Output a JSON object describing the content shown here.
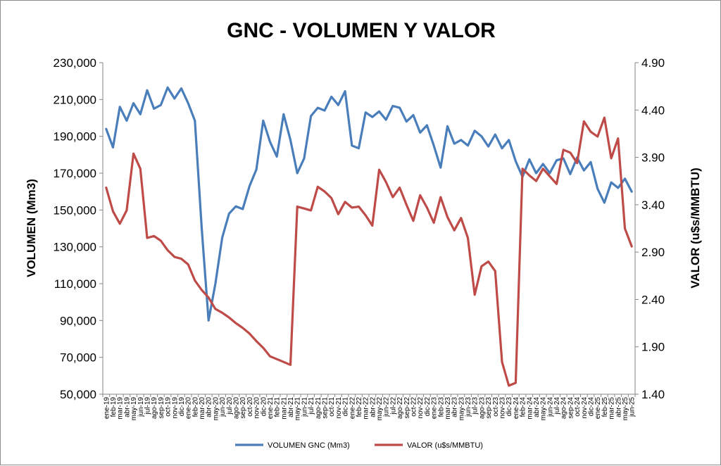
{
  "chart_data": {
    "type": "line",
    "title": "GNC - VOLUMEN Y VALOR",
    "ylabel_left": "VOLUMEN (Mm3)",
    "ylabel_right": "VALOR (u$s/MMBTU)",
    "ylim_left": [
      50000,
      230000
    ],
    "ylim_right": [
      1.4,
      4.9
    ],
    "yticks_left": [
      "50,000",
      "70,000",
      "90,000",
      "110,000",
      "130,000",
      "150,000",
      "170,000",
      "190,000",
      "210,000",
      "230,000"
    ],
    "yticks_right": [
      "1.40",
      "1.90",
      "2.40",
      "2.90",
      "3.40",
      "3.90",
      "4.40",
      "4.90"
    ],
    "grid": false,
    "legend_position": "bottom",
    "categories": [
      "ene-19",
      "feb-19",
      "mar-19",
      "abr-19",
      "may-19",
      "jun-19",
      "jul-19",
      "ago-19",
      "sep-19",
      "oct-19",
      "nov-19",
      "dic-19",
      "ene-20",
      "feb-20",
      "mar-20",
      "abr-20",
      "may-20",
      "jun-20",
      "jul-20",
      "ago-20",
      "sep-20",
      "oct-20",
      "nov-20",
      "dic-20",
      "ene-21",
      "feb-21",
      "mar-21",
      "abr-21",
      "may-21",
      "jun-21",
      "jul-21",
      "ago-21",
      "sep-21",
      "oct-21",
      "nov-21",
      "dic-21",
      "ene-22",
      "feb-22",
      "mar-22",
      "abr-22",
      "may-22",
      "jun-22",
      "jul-22",
      "ago-22",
      "sep-22",
      "oct-22",
      "nov-22",
      "dic-22",
      "ene-23",
      "feb-23",
      "mar-23",
      "abr-23",
      "may-23",
      "jun-23",
      "jul-23",
      "ago-23",
      "sep-23",
      "oct-23",
      "nov-23",
      "dic-23",
      "ene-24",
      "feb-24",
      "mar-24",
      "abr-24",
      "may-24",
      "jun-24",
      "jul-24",
      "ago-24",
      "sep-24",
      "oct-24",
      "nov-24",
      "dic-24",
      "ene-25",
      "feb-25",
      "mar-25",
      "abr-25",
      "may-25",
      "jun-25"
    ],
    "series": [
      {
        "name": "VOLUMEN GNC (Mm3)",
        "axis": "left",
        "color": "#4a7ebb",
        "values": [
          194000,
          184000,
          206000,
          198500,
          208000,
          202000,
          215000,
          205000,
          207000,
          216500,
          210500,
          216000,
          208000,
          198500,
          140000,
          90000,
          110000,
          135000,
          148000,
          152000,
          150500,
          163000,
          172000,
          198500,
          187000,
          179000,
          202000,
          188000,
          170000,
          178000,
          201000,
          205500,
          204000,
          211500,
          207000,
          214500,
          185000,
          183500,
          203000,
          200500,
          203500,
          199000,
          206500,
          205500,
          198000,
          201500,
          192000,
          196000,
          185000,
          173000,
          195500,
          186000,
          188000,
          185000,
          193000,
          190000,
          184500,
          191000,
          183500,
          188000,
          176500,
          168000,
          177500,
          170000,
          175000,
          170000,
          177000,
          178000,
          169500,
          178500,
          171500,
          176000,
          161500,
          154000,
          165000,
          162000,
          167000,
          160000
        ]
      },
      {
        "name": "VALOR (u$s/MMBTU)",
        "axis": "right",
        "color": "#be4b48",
        "values": [
          3.58,
          3.33,
          3.2,
          3.34,
          3.94,
          3.78,
          3.05,
          3.07,
          3.02,
          2.92,
          2.85,
          2.83,
          2.77,
          2.6,
          2.5,
          2.42,
          2.3,
          2.26,
          2.21,
          2.15,
          2.1,
          2.04,
          1.96,
          1.89,
          1.8,
          1.77,
          1.74,
          1.71,
          3.38,
          3.36,
          3.34,
          3.59,
          3.54,
          3.47,
          3.3,
          3.43,
          3.37,
          3.38,
          3.29,
          3.18,
          3.77,
          3.64,
          3.48,
          3.58,
          3.4,
          3.23,
          3.5,
          3.37,
          3.21,
          3.48,
          3.27,
          3.13,
          3.26,
          3.05,
          2.45,
          2.75,
          2.8,
          2.7,
          1.74,
          1.49,
          1.52,
          3.78,
          3.71,
          3.65,
          3.78,
          3.7,
          3.62,
          3.98,
          3.95,
          3.84,
          4.28,
          4.17,
          4.12,
          4.32,
          3.89,
          4.1,
          3.15,
          2.96
        ]
      }
    ]
  }
}
